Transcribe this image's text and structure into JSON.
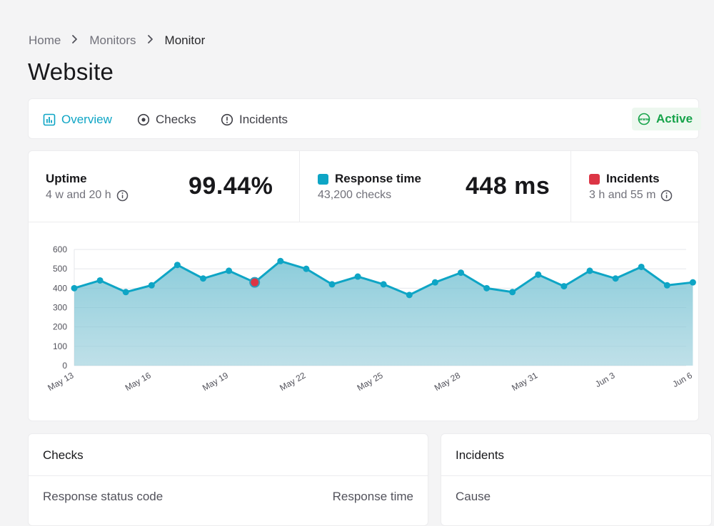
{
  "breadcrumb": {
    "items": [
      "Home",
      "Monitors",
      "Monitor"
    ]
  },
  "page": {
    "title": "Website"
  },
  "tabs": [
    {
      "label": "Overview",
      "icon": "bar-chart-icon",
      "active": true
    },
    {
      "label": "Checks",
      "icon": "target-icon",
      "active": false
    },
    {
      "label": "Incidents",
      "icon": "alert-circle-icon",
      "active": false
    }
  ],
  "status": {
    "label": "Active",
    "icon": "globe-www-icon",
    "color": "#16a34a"
  },
  "stats": {
    "uptime": {
      "label": "Uptime",
      "sub": "4 w and 20 h",
      "value": "99.44%"
    },
    "response": {
      "label": "Response time",
      "sub": "43,200 checks",
      "value": "448 ms",
      "color": "#0ea5c5"
    },
    "incidents": {
      "label": "Incidents",
      "sub": "3 h and 55 m",
      "color": "#dc3545"
    }
  },
  "chart_data": {
    "type": "area",
    "x": [
      "May 13",
      "May 14",
      "May 15",
      "May 16",
      "May 17",
      "May 18",
      "May 19",
      "May 20",
      "May 21",
      "May 22",
      "May 23",
      "May 24",
      "May 25",
      "May 26",
      "May 27",
      "May 28",
      "May 29",
      "May 30",
      "May 31",
      "Jun 1",
      "Jun 2",
      "Jun 3",
      "Jun 4",
      "Jun 5",
      "Jun 6"
    ],
    "tick_labels": [
      "May 13",
      "May 16",
      "May 19",
      "May 22",
      "May 25",
      "May 28",
      "May 31",
      "Jun 3",
      "Jun 6"
    ],
    "series": [
      {
        "values": [
          400,
          440,
          380,
          415,
          520,
          450,
          490,
          430,
          540,
          500,
          420,
          460,
          420,
          365,
          430,
          480,
          400,
          380,
          470,
          410,
          490,
          450,
          510,
          415,
          430
        ],
        "color": "#0ea5c5"
      }
    ],
    "incident_points": [
      "May 20"
    ],
    "y_ticks": [
      0,
      100,
      200,
      300,
      400,
      500,
      600
    ],
    "ylim": [
      0,
      600
    ],
    "grid": true
  },
  "checks_panel": {
    "title": "Checks",
    "col1": "Response status code",
    "col2": "Response time"
  },
  "incidents_panel": {
    "title": "Incidents",
    "col1": "Cause"
  }
}
